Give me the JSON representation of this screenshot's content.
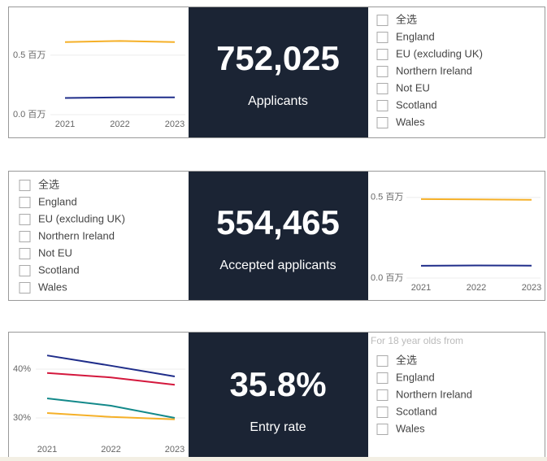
{
  "chart_data": [
    {
      "type": "line",
      "categories": [
        "2021",
        "2022",
        "2023"
      ],
      "series": [
        {
          "color": "#f5b028",
          "values": [
            0.61,
            0.62,
            0.61
          ]
        },
        {
          "color": "#1f2d8a",
          "values": [
            0.14,
            0.145,
            0.145
          ]
        }
      ],
      "ylim": [
        0,
        0.8
      ],
      "yticks": [
        {
          "value": 0,
          "label": "0.0 百万"
        },
        {
          "value": 0.5,
          "label": "0.5 百万"
        }
      ],
      "grid": true
    },
    {
      "type": "line",
      "categories": [
        "2021",
        "2022",
        "2023"
      ],
      "series": [
        {
          "color": "#f5b028",
          "values": [
            0.49,
            0.488,
            0.485
          ]
        },
        {
          "color": "#1f2d8a",
          "values": [
            0.076,
            0.078,
            0.077
          ]
        }
      ],
      "ylim": [
        0,
        0.6
      ],
      "yticks": [
        {
          "value": 0,
          "label": "0.0 百万"
        },
        {
          "value": 0.5,
          "label": "0.5 百万"
        }
      ],
      "grid": true
    },
    {
      "type": "line",
      "categories": [
        "2021",
        "2022",
        "2023"
      ],
      "series": [
        {
          "color": "#1f2d8a",
          "values": [
            42.8,
            40.7,
            38.5
          ]
        },
        {
          "color": "#d4183d",
          "values": [
            39.2,
            38.3,
            36.8
          ]
        },
        {
          "color": "#13898a",
          "values": [
            34.0,
            32.5,
            30.0
          ]
        },
        {
          "color": "#f5b028",
          "values": [
            31.0,
            30.2,
            29.7
          ]
        }
      ],
      "ylim": [
        25,
        46
      ],
      "yticks": [
        {
          "value": 30,
          "label": "30%"
        },
        {
          "value": 40,
          "label": "40%"
        }
      ],
      "grid": true
    }
  ],
  "kpis": [
    {
      "value": "752,025",
      "label": "Applicants"
    },
    {
      "value": "554,465",
      "label": "Accepted applicants"
    },
    {
      "value": "35.8%",
      "label": "Entry rate"
    }
  ],
  "slicers": [
    {
      "items": [
        "全选",
        "England",
        "EU (excluding UK)",
        "Northern Ireland",
        "Not EU",
        "Scotland",
        "Wales"
      ]
    },
    {
      "items": [
        "全选",
        "England",
        "EU (excluding UK)",
        "Northern Ireland",
        "Not EU",
        "Scotland",
        "Wales"
      ]
    },
    {
      "title": "For 18 year olds from",
      "items": [
        "全选",
        "England",
        "Northern Ireland",
        "Scotland",
        "Wales"
      ]
    }
  ]
}
